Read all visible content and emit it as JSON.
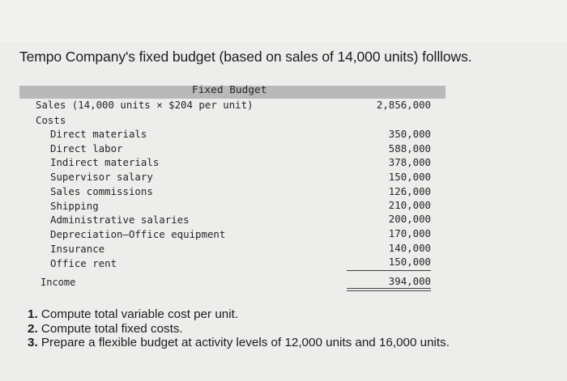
{
  "heading": "Tempo Company's fixed budget (based on sales of 14,000 units) folllows.",
  "table": {
    "column_title": "Fixed Budget",
    "sales": {
      "label": "Sales (14,000 units × $204 per unit)",
      "value": "2,856,000"
    },
    "costs_label": "Costs",
    "costs": [
      {
        "label": "Direct materials",
        "value": "350,000"
      },
      {
        "label": "Direct labor",
        "value": "588,000"
      },
      {
        "label": "Indirect materials",
        "value": "378,000"
      },
      {
        "label": "Supervisor salary",
        "value": "150,000"
      },
      {
        "label": "Sales commissions",
        "value": "126,000"
      },
      {
        "label": "Shipping",
        "value": "210,000"
      },
      {
        "label": "Administrative salaries",
        "value": "200,000"
      },
      {
        "label": "Depreciation—Office equipment",
        "value": "170,000"
      },
      {
        "label": "Insurance",
        "value": "140,000"
      },
      {
        "label": "Office rent",
        "value": "150,000"
      }
    ],
    "income": {
      "label": "Income",
      "value": "394,000"
    }
  },
  "questions": [
    {
      "num": "1.",
      "text": "Compute total variable cost per unit."
    },
    {
      "num": "2.",
      "text": "Compute total fixed costs."
    },
    {
      "num": "3.",
      "text": "Prepare a flexible budget at activity levels of 12,000 units and 16,000 units."
    }
  ]
}
